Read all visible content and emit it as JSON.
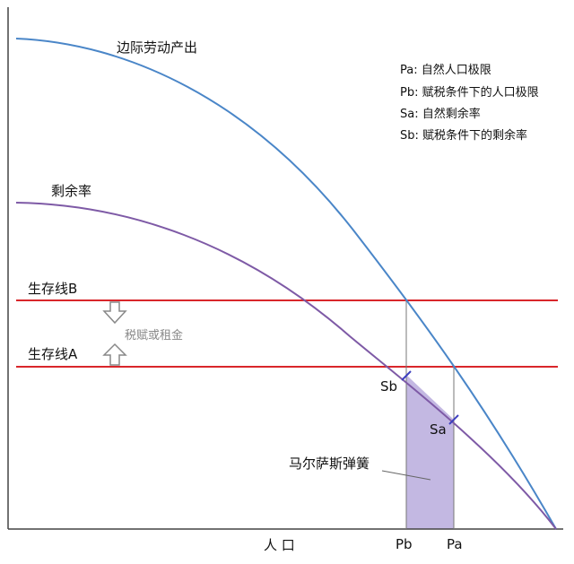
{
  "curves": {
    "mpl_label": "边际劳动产出",
    "surplus_label": "剩余率"
  },
  "legend": {
    "pa": "Pa: 自然人口极限",
    "pb": "Pb: 赋税条件下的人口极限",
    "sa": "Sa: 自然剩余率",
    "sb": "Sb: 赋税条件下的剩余率"
  },
  "lines": {
    "subsistence_b": "生存线B",
    "subsistence_a": "生存线A",
    "tax_note": "税赋或租金"
  },
  "points": {
    "sb": "Sb",
    "sa": "Sa"
  },
  "area_label": "马尔萨斯弹簧",
  "axis": {
    "xlabel": "人 口",
    "pb": "Pb",
    "pa": "Pa"
  },
  "colors": {
    "mpl_curve": "#4a86c8",
    "surplus_curve": "#7e5aa6",
    "subsistence": "#d9262b",
    "area_fill": "#c3b8e2",
    "axis": "#444444",
    "arrow": "#888888"
  }
}
